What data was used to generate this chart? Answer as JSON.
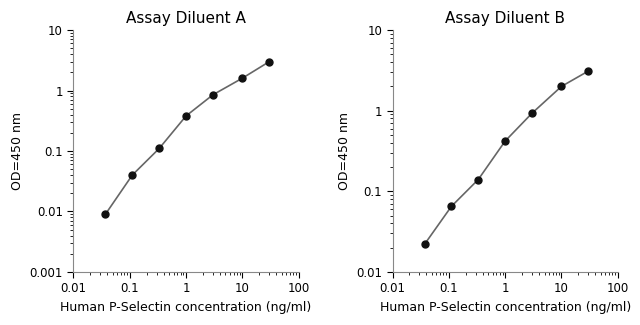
{
  "panel_A": {
    "title": "Assay Diluent A",
    "x": [
      0.037,
      0.111,
      0.333,
      1.0,
      3.0,
      10.0,
      30.0
    ],
    "y": [
      0.009,
      0.04,
      0.11,
      0.38,
      0.85,
      1.6,
      3.0
    ],
    "xlim": [
      0.01,
      100
    ],
    "ylim": [
      0.001,
      10
    ],
    "x_ticks": [
      0.01,
      0.1,
      1,
      10,
      100
    ],
    "x_tick_labels": [
      "0.01",
      "0.1",
      "1",
      "10",
      "100"
    ],
    "y_ticks": [
      0.001,
      0.01,
      0.1,
      1,
      10
    ],
    "y_tick_labels": [
      "0.001",
      "0.01",
      "0.1",
      "1",
      "10"
    ],
    "xlabel": "Human P-Selectin concentration (ng/ml)",
    "ylabel": "OD=450 nm"
  },
  "panel_B": {
    "title": "Assay Diluent B",
    "x": [
      0.037,
      0.111,
      0.333,
      1.0,
      3.0,
      10.0,
      30.0
    ],
    "y": [
      0.022,
      0.065,
      0.14,
      0.42,
      0.93,
      2.0,
      3.1
    ],
    "xlim": [
      0.01,
      100
    ],
    "ylim": [
      0.01,
      10
    ],
    "x_ticks": [
      0.01,
      0.1,
      1,
      10,
      100
    ],
    "x_tick_labels": [
      "0.01",
      "0.1",
      "1",
      "10",
      "100"
    ],
    "y_ticks": [
      0.01,
      0.1,
      1,
      10
    ],
    "y_tick_labels": [
      "0.01",
      "0.1",
      "1",
      "10"
    ],
    "xlabel": "Human P-Selectin concentration (ng/ml)",
    "ylabel": "OD=450 nm"
  },
  "line_color": "#666666",
  "marker_color": "#111111",
  "marker_size": 5,
  "line_width": 1.2,
  "bg_color": "#ffffff",
  "title_fontsize": 11,
  "label_fontsize": 9,
  "tick_fontsize": 8.5
}
